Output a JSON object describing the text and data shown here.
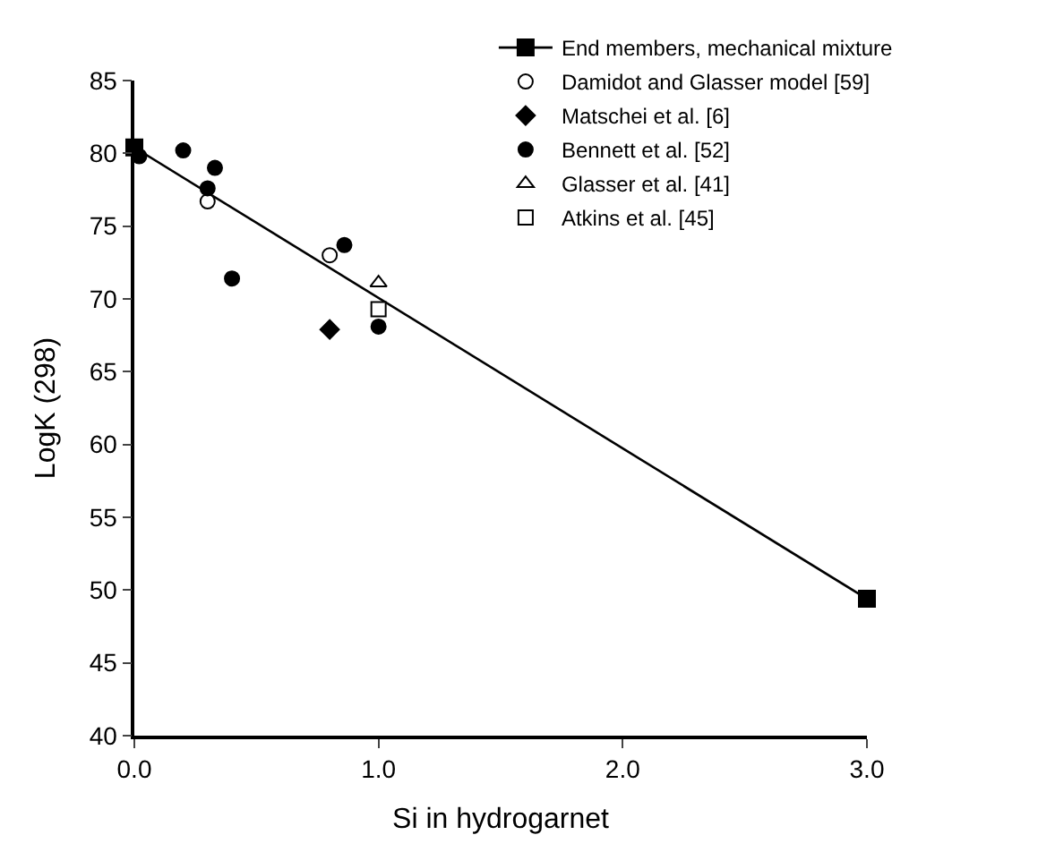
{
  "chart_data": {
    "type": "scatter",
    "xlabel": "Si in hydrogarnet",
    "ylabel": "LogK (298)",
    "xlim": [
      0,
      3.0
    ],
    "xticks": [
      {
        "value": 0,
        "label": "0.0"
      },
      {
        "value": 1,
        "label": "1.0"
      },
      {
        "value": 2,
        "label": "2.0"
      },
      {
        "value": 3,
        "label": "3.0"
      }
    ],
    "ylim": [
      40,
      85
    ],
    "yticks": [
      40,
      45,
      50,
      55,
      60,
      65,
      70,
      75,
      80,
      85
    ],
    "legend": "top right",
    "series": [
      {
        "name": "End members, mechanical mixture",
        "type": "line",
        "marker": "square",
        "color": "#000000",
        "x": [
          0,
          3.0
        ],
        "values": [
          80.4,
          49.4
        ]
      },
      {
        "name": "Damidot and Glasser model [59]",
        "marker": "circle",
        "color": "#ffffff",
        "x": [
          0.3,
          0.8
        ],
        "values": [
          76.7,
          73.0
        ]
      },
      {
        "name": "Matschei et al. [6]",
        "marker": "diamond",
        "color": "#000000",
        "x": [
          0.8
        ],
        "values": [
          67.9
        ]
      },
      {
        "name": "Bennett et al. [52]",
        "marker": "circle",
        "color": "#000000",
        "x": [
          0.02,
          0.2,
          0.33,
          0.3,
          0.4,
          0.86,
          1.0
        ],
        "values": [
          79.8,
          80.2,
          79.0,
          77.6,
          71.4,
          73.7,
          68.1
        ]
      },
      {
        "name": "Glasser et al. [41]",
        "marker": "triangle",
        "color": "#ffffff",
        "x": [
          1.0
        ],
        "values": [
          71.1
        ]
      },
      {
        "name": "Atkins et al. [45]",
        "marker": "square",
        "color": "#ffffff",
        "x": [
          1.0
        ],
        "values": [
          69.3
        ]
      }
    ]
  }
}
